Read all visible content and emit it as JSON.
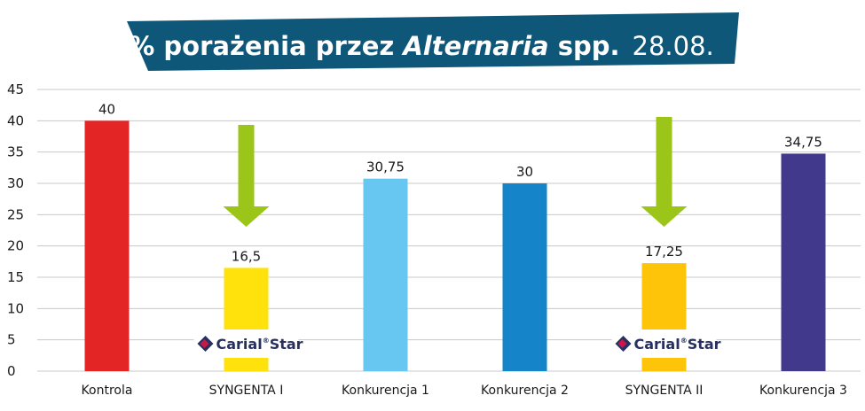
{
  "chart_data": {
    "type": "bar",
    "title": {
      "prefix": "% porażenia przez ",
      "italic": "Alternaria",
      "suffix": " spp.",
      "date": "28.08."
    },
    "categories": [
      "Kontrola",
      "SYNGENTA I",
      "Konkurencja 1",
      "Konkurencja 2",
      "SYNGENTA II",
      "Konkurencja 3"
    ],
    "values": [
      40,
      16.5,
      30.75,
      30,
      17.25,
      34.75
    ],
    "value_labels": [
      "40",
      "16,5",
      "30,75",
      "30",
      "17,25",
      "34,75"
    ],
    "bar_colors": [
      "#e32526",
      "#ffe20b",
      "#67c7f0",
      "#1584c8",
      "#fdc40a",
      "#413a8c"
    ],
    "ylim": [
      0,
      45
    ],
    "yticks": [
      0,
      5,
      10,
      15,
      20,
      25,
      30,
      35,
      40,
      45
    ],
    "ytick_labels": [
      "0",
      "5",
      "10",
      "15",
      "20",
      "25",
      "30",
      "35",
      "40",
      "45"
    ],
    "xlabel": "",
    "ylabel": "",
    "grid": true,
    "annotations": [
      {
        "category": "SYNGENTA I",
        "arrow": "down",
        "arrow_color": "#9bc518",
        "logo_text": "Carial",
        "logo_sup": "®",
        "logo_text2": "Star"
      },
      {
        "category": "SYNGENTA II",
        "arrow": "down",
        "arrow_color": "#9bc518",
        "logo_text": "Carial",
        "logo_sup": "®",
        "logo_text2": "Star"
      }
    ]
  },
  "colors": {
    "banner": "#0f5779",
    "banner_text": "#ffffff",
    "grid": "#c8c8c8",
    "text": "#1a1a1a",
    "logo_dark": "#27305f",
    "logo_accent": "#c8184b"
  }
}
